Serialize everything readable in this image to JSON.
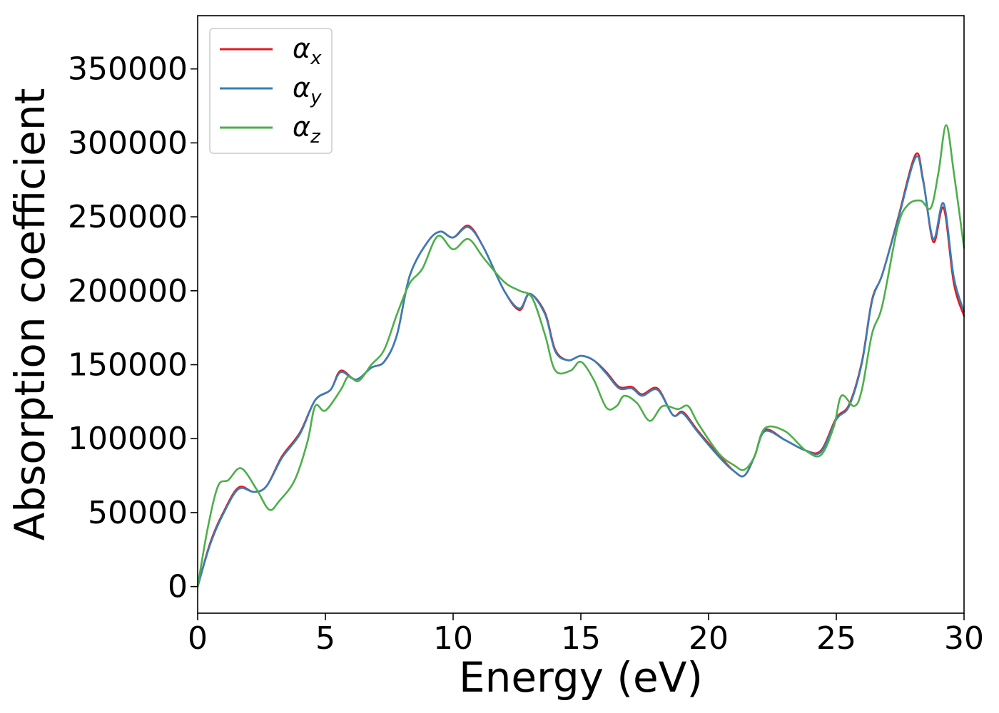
{
  "chart_data": {
    "type": "line",
    "xlabel": "Energy (eV)",
    "ylabel": "Absorption coefficient",
    "xlim": [
      0,
      30
    ],
    "ylim": [
      -18000,
      386000
    ],
    "xticks": [
      0,
      5,
      10,
      15,
      20,
      25,
      30
    ],
    "yticks": [
      0,
      50000,
      100000,
      150000,
      200000,
      250000,
      300000,
      350000
    ],
    "grid": false,
    "legend_position": "top-left",
    "series": [
      {
        "name": "α",
        "subscript": "x",
        "color": "#e41a1c",
        "points": [
          [
            0,
            0
          ],
          [
            0.5,
            30000
          ],
          [
            1,
            50000
          ],
          [
            1.6,
            67000
          ],
          [
            2.2,
            64000
          ],
          [
            2.7,
            68000
          ],
          [
            3.3,
            88000
          ],
          [
            4,
            104000
          ],
          [
            4.6,
            126000
          ],
          [
            5.2,
            133000
          ],
          [
            5.6,
            146000
          ],
          [
            6.2,
            140000
          ],
          [
            6.8,
            148000
          ],
          [
            7.3,
            152000
          ],
          [
            7.8,
            170000
          ],
          [
            8.3,
            210000
          ],
          [
            9,
            233000
          ],
          [
            9.5,
            240000
          ],
          [
            10,
            236000
          ],
          [
            10.6,
            244000
          ],
          [
            11.2,
            229000
          ],
          [
            12,
            200000
          ],
          [
            12.6,
            187000
          ],
          [
            13,
            198000
          ],
          [
            13.6,
            185000
          ],
          [
            14,
            160000
          ],
          [
            14.5,
            153000
          ],
          [
            15,
            156000
          ],
          [
            15.5,
            153000
          ],
          [
            16,
            145000
          ],
          [
            16.5,
            135000
          ],
          [
            17,
            135000
          ],
          [
            17.4,
            130000
          ],
          [
            18,
            134000
          ],
          [
            18.6,
            116000
          ],
          [
            19,
            118000
          ],
          [
            19.6,
            105000
          ],
          [
            20.5,
            87000
          ],
          [
            21,
            78000
          ],
          [
            21.4,
            75000
          ],
          [
            21.8,
            88000
          ],
          [
            22.2,
            106000
          ],
          [
            23,
            99000
          ],
          [
            23.8,
            92000
          ],
          [
            24.4,
            92000
          ],
          [
            25,
            114000
          ],
          [
            25.5,
            123000
          ],
          [
            26,
            152000
          ],
          [
            26.4,
            194000
          ],
          [
            26.8,
            211000
          ],
          [
            27.4,
            248000
          ],
          [
            28.1,
            292000
          ],
          [
            28.4,
            275000
          ],
          [
            28.8,
            233000
          ],
          [
            29.2,
            256000
          ],
          [
            29.6,
            205000
          ],
          [
            30,
            183000
          ]
        ]
      },
      {
        "name": "α",
        "subscript": "y",
        "color": "#377eb8",
        "points": [
          [
            0,
            0
          ],
          [
            0.5,
            29000
          ],
          [
            1,
            49000
          ],
          [
            1.6,
            66000
          ],
          [
            2.2,
            64000
          ],
          [
            2.7,
            68000
          ],
          [
            3.3,
            87000
          ],
          [
            4,
            103000
          ],
          [
            4.6,
            126000
          ],
          [
            5.2,
            133000
          ],
          [
            5.6,
            145000
          ],
          [
            6.2,
            140000
          ],
          [
            6.8,
            148000
          ],
          [
            7.3,
            152000
          ],
          [
            7.8,
            170000
          ],
          [
            8.3,
            210000
          ],
          [
            9,
            233000
          ],
          [
            9.5,
            240000
          ],
          [
            10,
            236000
          ],
          [
            10.6,
            243000
          ],
          [
            11.2,
            229000
          ],
          [
            12,
            200000
          ],
          [
            12.6,
            188000
          ],
          [
            13,
            198000
          ],
          [
            13.6,
            184000
          ],
          [
            14,
            159000
          ],
          [
            14.5,
            153000
          ],
          [
            15,
            156000
          ],
          [
            15.5,
            153000
          ],
          [
            16,
            144000
          ],
          [
            16.5,
            134000
          ],
          [
            17,
            134000
          ],
          [
            17.4,
            129000
          ],
          [
            18,
            133000
          ],
          [
            18.6,
            116000
          ],
          [
            19,
            117000
          ],
          [
            19.6,
            104000
          ],
          [
            20.5,
            86000
          ],
          [
            21,
            78000
          ],
          [
            21.4,
            75000
          ],
          [
            21.8,
            88000
          ],
          [
            22.2,
            105000
          ],
          [
            23,
            99000
          ],
          [
            23.8,
            92000
          ],
          [
            24.4,
            91000
          ],
          [
            25,
            113000
          ],
          [
            25.5,
            122000
          ],
          [
            26,
            151000
          ],
          [
            26.4,
            193000
          ],
          [
            26.8,
            211000
          ],
          [
            27.4,
            247000
          ],
          [
            28.1,
            290000
          ],
          [
            28.4,
            274000
          ],
          [
            28.8,
            235000
          ],
          [
            29.2,
            259000
          ],
          [
            29.6,
            209000
          ],
          [
            30,
            186000
          ]
        ]
      },
      {
        "name": "α",
        "subscript": "z",
        "color": "#4daf4a",
        "points": [
          [
            0,
            0
          ],
          [
            0.4,
            40000
          ],
          [
            0.8,
            68000
          ],
          [
            1.2,
            72000
          ],
          [
            1.7,
            80000
          ],
          [
            2.3,
            66000
          ],
          [
            2.8,
            52000
          ],
          [
            3.2,
            58000
          ],
          [
            3.8,
            72000
          ],
          [
            4.3,
            98000
          ],
          [
            4.6,
            122000
          ],
          [
            5,
            119000
          ],
          [
            5.6,
            133000
          ],
          [
            5.9,
            142000
          ],
          [
            6.3,
            139000
          ],
          [
            6.8,
            150000
          ],
          [
            7.3,
            160000
          ],
          [
            7.8,
            184000
          ],
          [
            8.3,
            205000
          ],
          [
            8.8,
            215000
          ],
          [
            9.4,
            237000
          ],
          [
            10,
            228000
          ],
          [
            10.6,
            235000
          ],
          [
            11.2,
            222000
          ],
          [
            12,
            206000
          ],
          [
            12.6,
            200000
          ],
          [
            13.1,
            195000
          ],
          [
            13.6,
            170000
          ],
          [
            14,
            146000
          ],
          [
            14.6,
            146000
          ],
          [
            15,
            152000
          ],
          [
            15.5,
            140000
          ],
          [
            16,
            121000
          ],
          [
            16.4,
            122000
          ],
          [
            16.7,
            129000
          ],
          [
            17.2,
            124000
          ],
          [
            17.7,
            112000
          ],
          [
            18.2,
            122000
          ],
          [
            18.8,
            120000
          ],
          [
            19.2,
            122000
          ],
          [
            19.6,
            110000
          ],
          [
            20.4,
            90000
          ],
          [
            21,
            82000
          ],
          [
            21.4,
            79000
          ],
          [
            21.8,
            88000
          ],
          [
            22.2,
            107000
          ],
          [
            23,
            105000
          ],
          [
            23.8,
            92000
          ],
          [
            24.4,
            89000
          ],
          [
            24.9,
            108000
          ],
          [
            25.2,
            129000
          ],
          [
            25.7,
            122000
          ],
          [
            26,
            133000
          ],
          [
            26.4,
            171000
          ],
          [
            26.8,
            190000
          ],
          [
            27.4,
            243000
          ],
          [
            27.8,
            258000
          ],
          [
            28.3,
            261000
          ],
          [
            28.7,
            256000
          ],
          [
            29,
            280000
          ],
          [
            29.3,
            312000
          ],
          [
            29.6,
            280000
          ],
          [
            30,
            229000
          ]
        ]
      }
    ]
  }
}
